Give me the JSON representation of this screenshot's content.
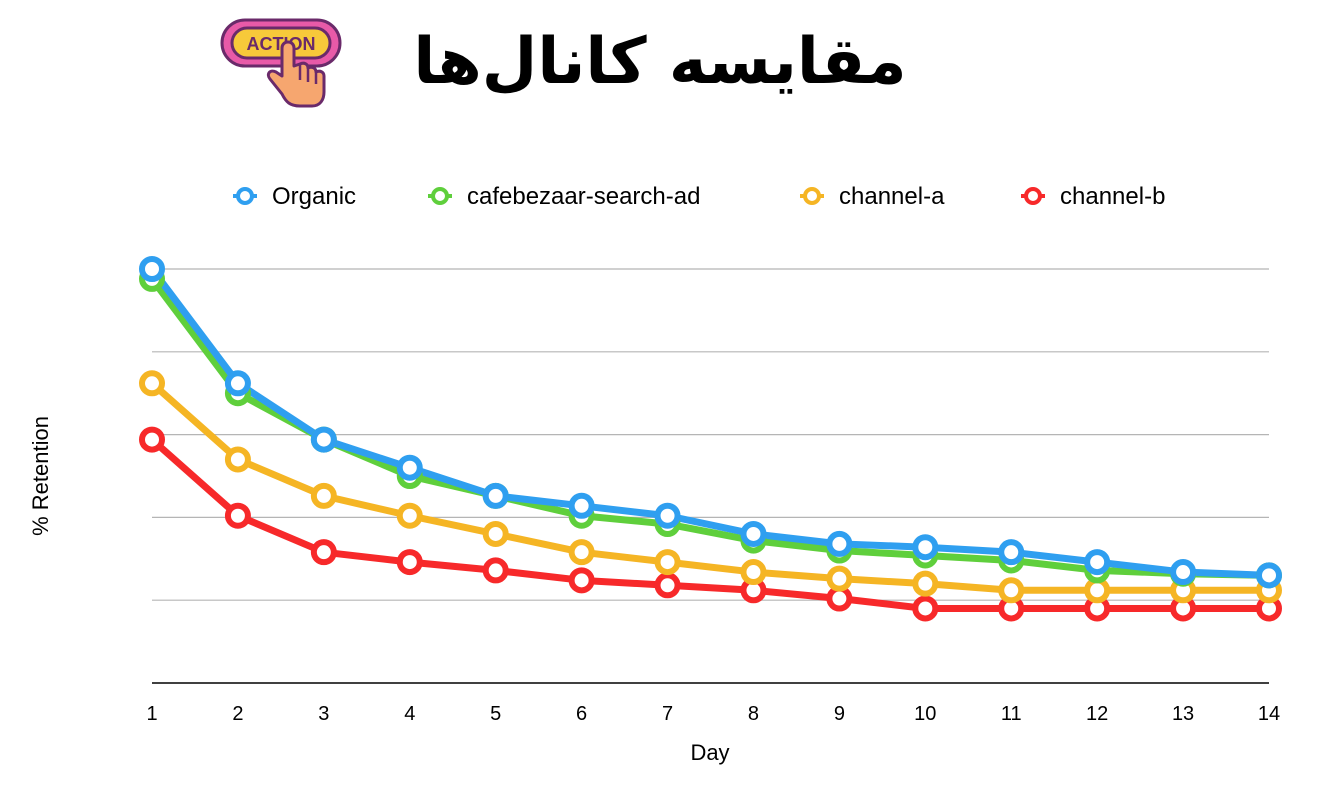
{
  "title": "مقایسه کانال‌ها",
  "badge": {
    "text": "ACTION",
    "icon": "pointing-hand-icon"
  },
  "chart_data": {
    "type": "line",
    "xlabel": "Day",
    "ylabel": "% Retention",
    "x": [
      1,
      2,
      3,
      4,
      5,
      6,
      7,
      8,
      9,
      10,
      11,
      12,
      13,
      14
    ],
    "ylim": [
      0,
      25
    ],
    "grid": true,
    "legend_position": "top",
    "series": [
      {
        "name": "Organic",
        "color": "#2f9ff0",
        "values": [
          25,
          18.1,
          14.7,
          13.0,
          11.3,
          10.7,
          10.1,
          9.0,
          8.4,
          8.2,
          7.9,
          7.3,
          6.7,
          6.5
        ]
      },
      {
        "name": "cafebezaar-search-ad",
        "color": "#5fcf3c",
        "values": [
          24.4,
          17.5,
          14.7,
          12.5,
          11.3,
          10.1,
          9.6,
          8.6,
          8.0,
          7.7,
          7.4,
          6.8,
          6.6,
          6.5
        ]
      },
      {
        "name": "channel-a",
        "color": "#f5b524",
        "values": [
          18.1,
          13.5,
          11.3,
          10.1,
          9.0,
          7.9,
          7.3,
          6.7,
          6.3,
          6.0,
          5.6,
          5.6,
          5.6,
          5.6
        ]
      },
      {
        "name": "channel-b",
        "color": "#f7292a",
        "values": [
          14.7,
          10.1,
          7.9,
          7.3,
          6.8,
          6.2,
          5.9,
          5.6,
          5.1,
          4.5,
          4.5,
          4.5,
          4.5,
          4.5
        ]
      }
    ]
  }
}
